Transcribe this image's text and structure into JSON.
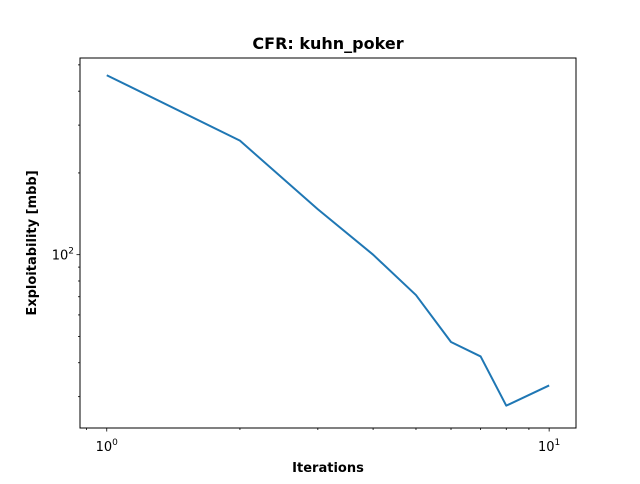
{
  "chart_data": {
    "type": "line",
    "title": "CFR: kuhn_poker",
    "xlabel": "Iterations",
    "ylabel": "Exploitability [mbb]",
    "xscale": "log",
    "yscale": "log",
    "xlim": [
      0.87,
      11.5
    ],
    "ylim": [
      23,
      530
    ],
    "grid": false,
    "line_color": "#1f77b4",
    "x_ticks": [
      {
        "value": 1,
        "base": "10",
        "exponent": "0"
      },
      {
        "value": 10,
        "base": "10",
        "exponent": "1"
      }
    ],
    "y_ticks": [
      {
        "value": 100,
        "base": "10",
        "exponent": "2"
      }
    ],
    "series": [
      {
        "x": [
          1,
          2,
          3,
          4,
          5,
          6,
          7,
          8,
          10
        ],
        "y": [
          458,
          263,
          147,
          100,
          71,
          47.7,
          42.2,
          27.8,
          33.0
        ]
      }
    ]
  }
}
